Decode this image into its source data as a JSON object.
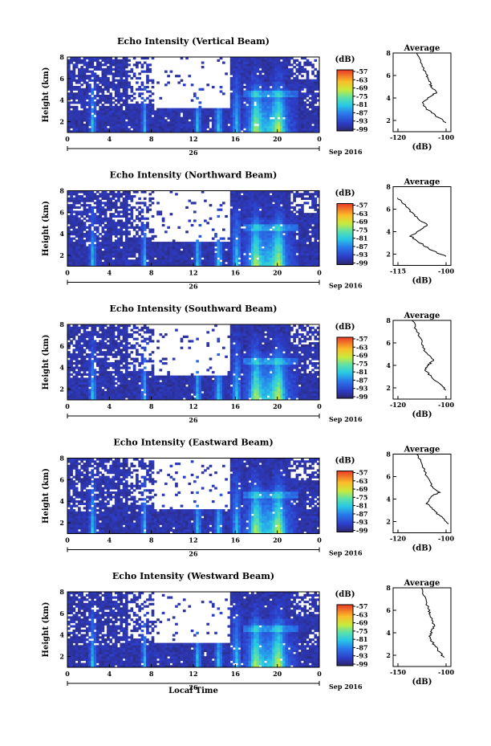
{
  "figure": {
    "xlabel": "Local Time",
    "date_label": "Sep 2016",
    "day_label": "26",
    "ylabel": "Height (km)",
    "cb_unit": "(dB)",
    "avg_title": "Average",
    "avg_xunit": "(dB)"
  },
  "chart_data": [
    {
      "type": "heatmap",
      "title": "Echo Intensity (Vertical Beam)",
      "xlabel": "Local Time",
      "ylabel": "Height (km)",
      "x_ticks": [
        "0",
        "4",
        "8",
        "12",
        "16",
        "20",
        "0"
      ],
      "y_ticks": [
        "2",
        "4",
        "6",
        "8"
      ],
      "colorbar_ticks": [
        "-57",
        "-63",
        "-69",
        "-75",
        "-81",
        "-87",
        "-93",
        "-99"
      ],
      "colorbar_unit": "(dB)",
      "average_profile": {
        "title": "Average",
        "xlabel": "(dB)",
        "x_ticks": [
          "-120",
          "-100"
        ],
        "values": [
          [
            -112,
            8.0
          ],
          [
            -110,
            7.0
          ],
          [
            -108,
            6.0
          ],
          [
            -107,
            5.5
          ],
          [
            -106,
            5.0
          ],
          [
            -104,
            4.5
          ],
          [
            -106,
            4.2
          ],
          [
            -110,
            3.6
          ],
          [
            -108,
            3.0
          ],
          [
            -104,
            2.4
          ],
          [
            -100,
            1.8
          ]
        ]
      }
    },
    {
      "type": "heatmap",
      "title": "Echo Intensity (Northward Beam)",
      "xlabel": "Local Time",
      "ylabel": "Height (km)",
      "x_ticks": [
        "0",
        "4",
        "8",
        "12",
        "16",
        "20",
        "0"
      ],
      "y_ticks": [
        "2",
        "4",
        "6",
        "8"
      ],
      "colorbar_ticks": [
        "-57",
        "-63",
        "-69",
        "-75",
        "-81",
        "-87",
        "-93",
        "-99"
      ],
      "colorbar_unit": "(dB)",
      "average_profile": {
        "title": "Average",
        "xlabel": "(dB)",
        "x_ticks": [
          "-115",
          "-100"
        ],
        "values": [
          [
            -115,
            7.0
          ],
          [
            -113,
            6.4
          ],
          [
            -111,
            5.8
          ],
          [
            -109,
            5.2
          ],
          [
            -106,
            4.6
          ],
          [
            -108,
            4.2
          ],
          [
            -111,
            3.6
          ],
          [
            -108,
            3.0
          ],
          [
            -105,
            2.4
          ],
          [
            -100,
            1.8
          ]
        ]
      }
    },
    {
      "type": "heatmap",
      "title": "Echo Intensity (Southward Beam)",
      "xlabel": "Local Time",
      "ylabel": "Height (km)",
      "x_ticks": [
        "0",
        "4",
        "8",
        "12",
        "16",
        "20",
        "0"
      ],
      "y_ticks": [
        "2",
        "4",
        "6",
        "8"
      ],
      "colorbar_ticks": [
        "-57",
        "-63",
        "-69",
        "-75",
        "-81",
        "-87",
        "-93",
        "-99"
      ],
      "colorbar_unit": "(dB)",
      "average_profile": {
        "title": "Average",
        "xlabel": "(dB)",
        "x_ticks": [
          "-120",
          "-100"
        ],
        "values": [
          [
            -114,
            8.0
          ],
          [
            -112,
            7.0
          ],
          [
            -110,
            6.0
          ],
          [
            -109,
            5.2
          ],
          [
            -105,
            4.5
          ],
          [
            -107,
            4.1
          ],
          [
            -109,
            3.6
          ],
          [
            -106,
            3.0
          ],
          [
            -103,
            2.4
          ],
          [
            -100,
            1.8
          ]
        ]
      }
    },
    {
      "type": "heatmap",
      "title": "Echo Intensity (Eastward Beam)",
      "xlabel": "Local Time",
      "ylabel": "Height (km)",
      "x_ticks": [
        "0",
        "4",
        "8",
        "12",
        "16",
        "20",
        "0"
      ],
      "y_ticks": [
        "2",
        "4",
        "6",
        "8"
      ],
      "colorbar_ticks": [
        "-57",
        "-63",
        "-69",
        "-75",
        "-81",
        "-87",
        "-93",
        "-99"
      ],
      "colorbar_unit": "(dB)",
      "average_profile": {
        "title": "Average",
        "xlabel": "(dB)",
        "x_ticks": [
          "-120",
          "-100"
        ],
        "values": [
          [
            -112,
            8.0
          ],
          [
            -110,
            7.0
          ],
          [
            -108,
            6.0
          ],
          [
            -106,
            5.2
          ],
          [
            -103,
            4.6
          ],
          [
            -106,
            4.2
          ],
          [
            -108,
            3.6
          ],
          [
            -105,
            3.0
          ],
          [
            -102,
            2.4
          ],
          [
            -99,
            1.8
          ]
        ]
      }
    },
    {
      "type": "heatmap",
      "title": "Echo Intensity (Westward Beam)",
      "xlabel": "Local Time",
      "ylabel": "Height (km)",
      "x_ticks": [
        "0",
        "4",
        "8",
        "12",
        "16",
        "20",
        "0"
      ],
      "y_ticks": [
        "2",
        "4",
        "6",
        "8"
      ],
      "colorbar_ticks": [
        "-57",
        "-63",
        "-69",
        "-75",
        "-81",
        "-87",
        "-93",
        "-99"
      ],
      "colorbar_unit": "(dB)",
      "average_profile": {
        "title": "Average",
        "xlabel": "(dB)",
        "x_ticks": [
          "-150",
          "-100"
        ],
        "values": [
          [
            -125,
            8.0
          ],
          [
            -122,
            7.0
          ],
          [
            -118,
            6.0
          ],
          [
            -116,
            5.4
          ],
          [
            -112,
            4.6
          ],
          [
            -115,
            4.2
          ],
          [
            -117,
            3.6
          ],
          [
            -113,
            3.0
          ],
          [
            -108,
            2.4
          ],
          [
            -102,
            1.8
          ]
        ]
      }
    }
  ]
}
